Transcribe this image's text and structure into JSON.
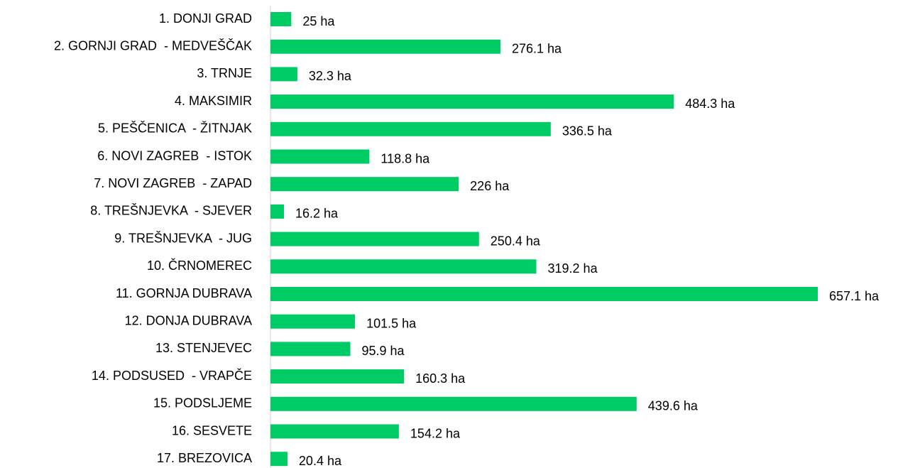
{
  "chart_data": {
    "type": "bar",
    "orientation": "horizontal",
    "color": "#00cc66",
    "categories": [
      "1. DONJI GRAD",
      "2. GORNJI GRAD  - MEDVEŠČAK",
      "3. TRNJE",
      "4. MAKSIMIR",
      "5. PEŠČENICA  - ŽITNJAK",
      "6. NOVI ZAGREB  - ISTOK",
      "7. NOVI ZAGREB  - ZAPAD",
      "8. TREŠNJEVKA  - SJEVER",
      "9. TREŠNJEVKA  - JUG",
      "10. ČRNOMEREC",
      "11. GORNJA DUBRAVA",
      "12. DONJA DUBRAVA",
      "13. STENJEVEC",
      "14. PODSUSED  - VRAPČE",
      "15. PODSLJEME",
      "16. SESVETE",
      "17. BREZOVICA"
    ],
    "values": [
      25,
      276.1,
      32.3,
      484.3,
      336.5,
      118.8,
      226,
      16.2,
      250.4,
      319.2,
      657.1,
      101.5,
      95.9,
      160.3,
      439.6,
      154.2,
      20.4
    ],
    "value_labels": [
      "25 ha",
      "276.1 ha",
      "32.3 ha",
      "484.3 ha",
      "336.5 ha",
      "118.8 ha",
      "226 ha",
      "16.2 ha",
      "250.4 ha",
      "319.2 ha",
      "657.1 ha",
      "101.5 ha",
      "95.9 ha",
      "160.3 ha",
      "439.6 ha",
      "154.2 ha",
      "20.4 ha"
    ]
  }
}
